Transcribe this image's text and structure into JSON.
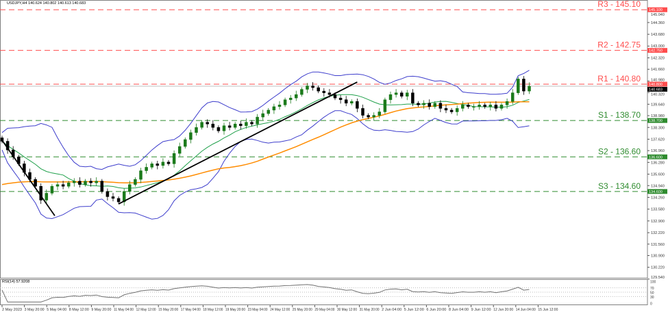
{
  "header": {
    "symbol_info": "USDJPY,H4 140.624 140.802 140.613 140.683"
  },
  "rsi": {
    "label": "RSI(14) 57.9208",
    "ticks": [
      "100",
      "70",
      "50",
      "30",
      "0"
    ]
  },
  "chart_data": {
    "type": "candlestick",
    "ylim": [
      129.54,
      145.4
    ],
    "y_ticks": [
      "145.040",
      "144.360",
      "143.680",
      "143.000",
      "142.320",
      "141.660",
      "140.980",
      "140.320",
      "139.640",
      "138.980",
      "138.300",
      "137.620",
      "136.960",
      "136.280",
      "135.600",
      "134.940",
      "134.260",
      "133.580",
      "132.900",
      "132.220",
      "131.560",
      "130.900",
      "130.220",
      "129.540"
    ],
    "x_ticks": [
      "2 May 2023",
      "3 May 20:00",
      "5 May 04:00",
      "8 May 12:00",
      "9 May 20:00",
      "11 May 04:00",
      "12 May 12:00",
      "15 May 20:00",
      "17 May 04:00",
      "18 May 12:00",
      "19 May 20:00",
      "23 May 04:00",
      "24 May 12:00",
      "25 May 20:00",
      "29 May 04:00",
      "30 May 12:00",
      "31 May 20:00",
      "2 Jun 04:00",
      "5 Jun 12:00",
      "6 Jun 20:00",
      "8 Jun 04:00",
      "9 Jun 12:00",
      "12 Jun 20:00",
      "14 Jun 04:00",
      "15 Jun 12:00"
    ],
    "closes": [
      137.5,
      137.0,
      136.6,
      136.2,
      135.7,
      135.3,
      134.9,
      134.1,
      134.5,
      134.9,
      135.0,
      134.9,
      135.1,
      135.2,
      135.0,
      135.2,
      135.1,
      135.2,
      134.6,
      134.3,
      134.2,
      134.0,
      134.6,
      135.0,
      135.3,
      135.8,
      136.0,
      136.2,
      136.1,
      136.3,
      136.2,
      136.8,
      137.2,
      137.6,
      138.0,
      138.3,
      138.6,
      138.5,
      138.3,
      138.1,
      138.4,
      138.3,
      138.5,
      138.4,
      138.6,
      138.5,
      138.9,
      139.1,
      139.3,
      139.5,
      139.6,
      139.9,
      140.0,
      140.2,
      140.5,
      140.7,
      140.6,
      140.4,
      140.3,
      140.2,
      140.0,
      139.9,
      139.7,
      139.8,
      139.4,
      139.0,
      138.9,
      139.0,
      139.2,
      139.9,
      140.2,
      140.3,
      140.1,
      140.3,
      139.7,
      139.6,
      139.7,
      139.5,
      139.7,
      139.4,
      139.3,
      139.2,
      139.4,
      139.6,
      139.5,
      139.5,
      139.6,
      139.5,
      139.6,
      139.4,
      139.6,
      139.8,
      140.3,
      141.1,
      140.4,
      140.683
    ],
    "current_price": {
      "value": 140.683,
      "tag": "140.683",
      "color": "#000000"
    },
    "levels": [
      {
        "label": "R3 - 145.10",
        "value": 145.1,
        "tag": "145.100",
        "color": "#ff4d4d"
      },
      {
        "label": "R2 - 142.75",
        "value": 142.75,
        "tag": "142.750",
        "color": "#ff4d4d"
      },
      {
        "label": "R1 - 140.80",
        "value": 140.8,
        "tag": "140.800",
        "color": "#ff4d4d"
      },
      {
        "label": "S1 - 138.70",
        "value": 138.7,
        "tag": "138.700",
        "color": "#2e8b2e"
      },
      {
        "label": "S2 - 136.60",
        "value": 136.6,
        "tag": "136.600",
        "color": "#2e8b2e"
      },
      {
        "label": "S3 - 134.60",
        "value": 134.6,
        "tag": "134.600",
        "color": "#2e8b2e"
      }
    ],
    "trendlines": [
      {
        "from_bar": 0,
        "from_price": 137.56,
        "to_bar": 9.5,
        "to_price": 133.2
      },
      {
        "from_bar": 21,
        "from_price": 133.88,
        "to_bar": 64,
        "to_price": 140.92
      }
    ],
    "indicators": {
      "bollinger_color": "#3d3dcc",
      "ma_fast_color": "#1fa04a",
      "ma_slow_color": "#ff8c00",
      "rsi_color": "#707070"
    },
    "candle_colors": {
      "up": "#1b7a1b",
      "down": "#000000"
    }
  }
}
